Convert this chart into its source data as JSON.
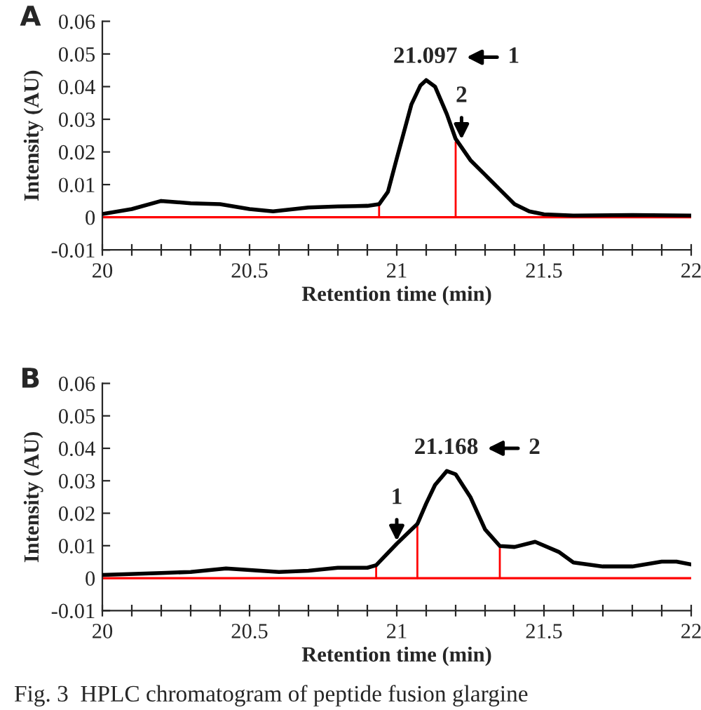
{
  "chart_data": [
    {
      "type": "line",
      "title": "A",
      "xlabel": "Retention time (min)",
      "ylabel": "Intensity (AU)",
      "xlim": [
        20,
        22
      ],
      "ylim": [
        -0.01,
        0.06
      ],
      "xticks": [
        20,
        {
          "value": 20.1,
          "label": null
        },
        {
          "value": 20.2,
          "label": null
        },
        {
          "value": 20.3,
          "label": null
        },
        {
          "value": 20.4,
          "label": null
        },
        20.5,
        {
          "value": 20.6,
          "label": null
        },
        {
          "value": 20.7,
          "label": null
        },
        {
          "value": 20.8,
          "label": null
        },
        {
          "value": 20.9,
          "label": null
        },
        21,
        {
          "value": 21.1,
          "label": null
        },
        {
          "value": 21.2,
          "label": null
        },
        {
          "value": 21.3,
          "label": null
        },
        {
          "value": 21.4,
          "label": null
        },
        21.5,
        {
          "value": 21.6,
          "label": null
        },
        {
          "value": 21.7,
          "label": null
        },
        {
          "value": 21.8,
          "label": null
        },
        {
          "value": 21.9,
          "label": null
        },
        22
      ],
      "yticks": [
        -0.01,
        0,
        0.01,
        0.02,
        0.03,
        0.04,
        0.05,
        0.06
      ],
      "grid": false,
      "legend": false,
      "marker": "none",
      "line_style": "solid",
      "series": [
        {
          "color": "#000000",
          "x": [
            20.0,
            20.1,
            20.2,
            20.3,
            20.4,
            20.5,
            20.58,
            20.7,
            20.8,
            20.9,
            20.94,
            20.97,
            21.0,
            21.05,
            21.08,
            21.1,
            21.13,
            21.17,
            21.2,
            21.25,
            21.3,
            21.35,
            21.4,
            21.45,
            21.5,
            21.6,
            21.8,
            22.0
          ],
          "values": [
            0.001,
            0.0025,
            0.005,
            0.0043,
            0.004,
            0.0025,
            0.0018,
            0.003,
            0.0033,
            0.0035,
            0.004,
            0.0078,
            0.018,
            0.0346,
            0.0403,
            0.042,
            0.04,
            0.0316,
            0.024,
            0.0175,
            0.013,
            0.0085,
            0.004,
            0.0018,
            0.0009,
            0.0005,
            0.0007,
            0.0005
          ]
        },
        {
          "color": "#ff0000",
          "x": [
            20.94,
            20.94
          ],
          "values": [
            0,
            0.004
          ]
        },
        {
          "color": "#ff0000",
          "x": [
            21.2,
            21.2
          ],
          "values": [
            0,
            0.023
          ]
        }
      ],
      "ref_lines": [
        {
          "axis": "y",
          "value": 0,
          "color": "#ff0000",
          "line_style": "solid"
        }
      ],
      "annotations": [
        {
          "text": "21.097",
          "x": 21.097,
          "y": 0.042
        },
        "1",
        {
          "text": "2",
          "x": 21.22,
          "y": 0.023
        }
      ]
    },
    {
      "type": "line",
      "title": "B",
      "xlabel": "Retention time (min)",
      "ylabel": "Intensity (AU)",
      "xlim": [
        20,
        22
      ],
      "ylim": [
        -0.01,
        0.06
      ],
      "xticks": [
        20,
        {
          "value": 20.1,
          "label": null
        },
        {
          "value": 20.2,
          "label": null
        },
        {
          "value": 20.3,
          "label": null
        },
        {
          "value": 20.4,
          "label": null
        },
        20.5,
        {
          "value": 20.6,
          "label": null
        },
        {
          "value": 20.7,
          "label": null
        },
        {
          "value": 20.8,
          "label": null
        },
        {
          "value": 20.9,
          "label": null
        },
        21,
        {
          "value": 21.1,
          "label": null
        },
        {
          "value": 21.2,
          "label": null
        },
        {
          "value": 21.3,
          "label": null
        },
        {
          "value": 21.4,
          "label": null
        },
        21.5,
        {
          "value": 21.6,
          "label": null
        },
        {
          "value": 21.7,
          "label": null
        },
        {
          "value": 21.8,
          "label": null
        },
        {
          "value": 21.9,
          "label": null
        },
        22
      ],
      "yticks": [
        -0.01,
        0,
        0.01,
        0.02,
        0.03,
        0.04,
        0.05,
        0.06
      ],
      "grid": false,
      "legend": false,
      "marker": "none",
      "line_style": "solid",
      "series": [
        {
          "color": "#000000",
          "x": [
            20.0,
            20.2,
            20.3,
            20.42,
            20.6,
            20.7,
            20.8,
            20.9,
            20.93,
            21.0,
            21.05,
            21.07,
            21.1,
            21.13,
            21.17,
            21.2,
            21.25,
            21.3,
            21.35,
            21.4,
            21.47,
            21.55,
            21.6,
            21.7,
            21.8,
            21.9,
            21.95,
            22.0
          ],
          "values": [
            0.001,
            0.0016,
            0.0019,
            0.003,
            0.0019,
            0.0023,
            0.0032,
            0.0032,
            0.004,
            0.0106,
            0.015,
            0.0167,
            0.023,
            0.0287,
            0.033,
            0.032,
            0.025,
            0.015,
            0.0099,
            0.0096,
            0.0112,
            0.0081,
            0.0048,
            0.0036,
            0.0036,
            0.0051,
            0.0051,
            0.0042
          ]
        },
        {
          "color": "#ff0000",
          "x": [
            20.93,
            20.93
          ],
          "values": [
            0,
            0.004
          ]
        },
        {
          "color": "#ff0000",
          "x": [
            21.07,
            21.07
          ],
          "values": [
            0,
            0.0167
          ]
        },
        {
          "color": "#ff0000",
          "x": [
            21.35,
            21.35
          ],
          "values": [
            0,
            0.0096
          ]
        }
      ],
      "ref_lines": [
        {
          "axis": "y",
          "value": 0,
          "color": "#ff0000",
          "line_style": "solid"
        }
      ],
      "annotations": [
        {
          "text": "21.168",
          "x": 21.168,
          "y": 0.033
        },
        "2",
        {
          "text": "1",
          "x": 21.0,
          "y": 0.0106
        },
        "Fig. 3  HPLC chromatogram of peptide fusion glargine"
      ]
    }
  ]
}
